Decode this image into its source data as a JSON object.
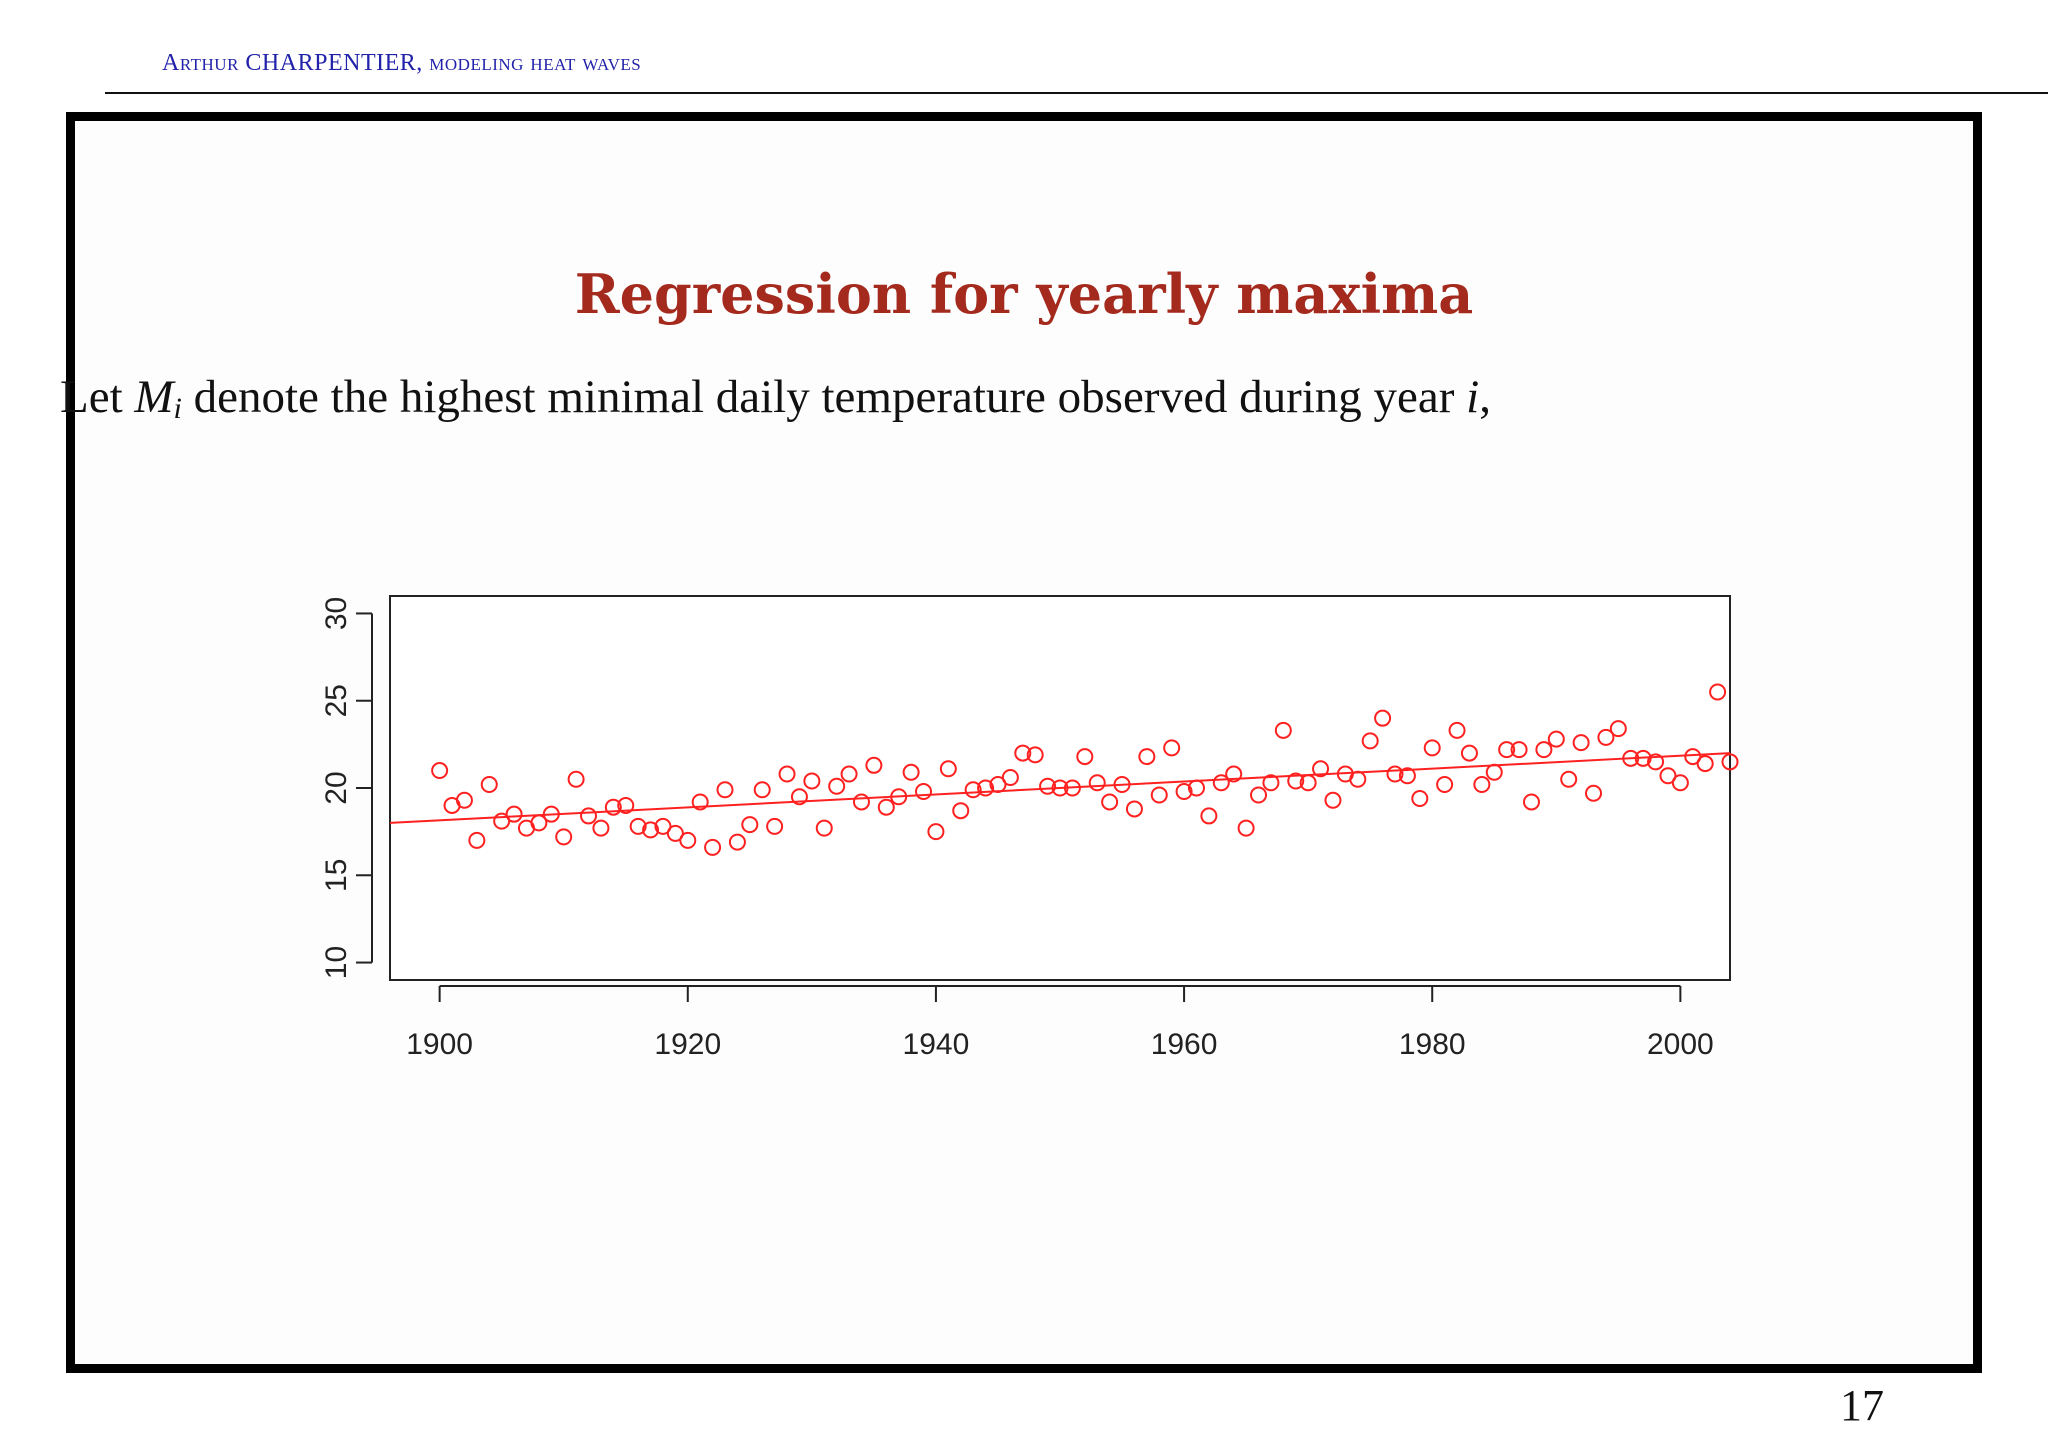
{
  "header": {
    "author": "Arthur CHARPENTIER",
    "topic": "modeling heat waves"
  },
  "slide": {
    "title": "Regression for yearly maxima",
    "lead_prefix": "Let ",
    "lead_math_var": "M",
    "lead_math_sub": "i",
    "lead_middle": " denote the highest minimal daily temperature observed during year ",
    "lead_math_year": "i",
    "lead_suffix": ","
  },
  "page_number": "17",
  "colors": {
    "title": "#a52a1e",
    "header": "#2222aa",
    "points": "#ff2020",
    "fit": "#ff2020"
  },
  "chart_data": {
    "type": "scatter",
    "title": "",
    "xlabel": "",
    "ylabel": "",
    "xlim": [
      1896,
      2004
    ],
    "ylim": [
      9,
      31
    ],
    "x_ticks": [
      1900,
      1920,
      1940,
      1960,
      1980,
      2000
    ],
    "y_ticks": [
      10,
      15,
      20,
      25,
      30
    ],
    "grid": false,
    "series": [
      {
        "marker": "open-circle",
        "x": [
          1900,
          1901,
          1902,
          1903,
          1904,
          1905,
          1906,
          1907,
          1908,
          1909,
          1910,
          1911,
          1912,
          1913,
          1914,
          1915,
          1916,
          1917,
          1918,
          1919,
          1920,
          1921,
          1922,
          1923,
          1924,
          1925,
          1926,
          1927,
          1928,
          1929,
          1930,
          1931,
          1932,
          1933,
          1934,
          1935,
          1936,
          1937,
          1938,
          1939,
          1940,
          1941,
          1942,
          1943,
          1944,
          1945,
          1946,
          1947,
          1948,
          1949,
          1950,
          1951,
          1952,
          1953,
          1954,
          1955,
          1956,
          1957,
          1958,
          1959,
          1960,
          1961,
          1962,
          1963,
          1964,
          1965,
          1966,
          1967,
          1968,
          1969,
          1970,
          1971,
          1972,
          1973,
          1974,
          1975,
          1976,
          1977,
          1978,
          1979,
          1980,
          1981,
          1982,
          1983,
          1984,
          1985,
          1986,
          1987,
          1988,
          1989,
          1990,
          1991,
          1992,
          1993,
          1994,
          1995,
          1996,
          1997,
          1998,
          1999,
          2000,
          2001,
          2002,
          2003,
          2004
        ],
        "y": [
          21.0,
          19.0,
          19.3,
          17.0,
          20.2,
          18.1,
          18.5,
          17.7,
          18.0,
          18.5,
          17.2,
          20.5,
          18.4,
          17.7,
          18.9,
          19.0,
          17.8,
          17.6,
          17.8,
          17.4,
          17.0,
          19.2,
          16.6,
          19.9,
          16.9,
          17.9,
          19.9,
          17.8,
          20.8,
          19.5,
          20.4,
          17.7,
          20.1,
          20.8,
          19.2,
          21.3,
          18.9,
          19.5,
          20.9,
          19.8,
          17.5,
          21.1,
          18.7,
          19.9,
          20.0,
          20.2,
          20.6,
          22.0,
          21.9,
          20.1,
          20.0,
          20.0,
          21.8,
          20.3,
          19.2,
          20.2,
          18.8,
          21.8,
          19.6,
          22.3,
          19.8,
          20.0,
          18.4,
          20.3,
          20.8,
          17.7,
          19.6,
          20.3,
          23.3,
          20.4,
          20.3,
          21.1,
          19.3,
          20.8,
          20.5,
          22.7,
          24.0,
          20.8,
          20.7,
          19.4,
          22.3,
          20.2,
          23.3,
          22.0,
          20.2,
          20.9,
          22.2,
          22.2,
          19.2,
          22.2,
          22.8,
          20.5,
          22.6,
          19.7,
          22.9,
          23.4,
          21.7,
          21.7,
          21.5,
          20.7,
          20.3,
          21.8,
          21.4,
          25.5,
          21.5
        ]
      }
    ],
    "fit_line": {
      "x": [
        1896,
        2004
      ],
      "y": [
        18.0,
        22.0
      ]
    }
  }
}
